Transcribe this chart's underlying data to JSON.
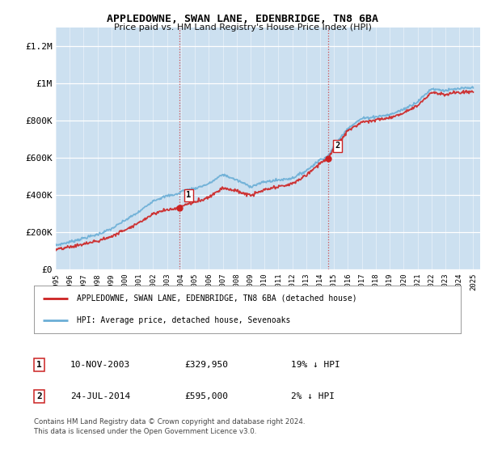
{
  "title": "APPLEDOWNE, SWAN LANE, EDENBRIDGE, TN8 6BA",
  "subtitle": "Price paid vs. HM Land Registry's House Price Index (HPI)",
  "ylabel_ticks": [
    "£0",
    "£200K",
    "£400K",
    "£600K",
    "£800K",
    "£1M",
    "£1.2M"
  ],
  "ytick_values": [
    0,
    200000,
    400000,
    600000,
    800000,
    1000000,
    1200000
  ],
  "ylim": [
    0,
    1300000
  ],
  "plot_bg_color": "#cce0f0",
  "sale1": {
    "date_num": 2003.86,
    "price": 329950,
    "label": "1",
    "date_str": "10-NOV-2003",
    "pct": "19% ↓ HPI"
  },
  "sale2": {
    "date_num": 2014.56,
    "price": 595000,
    "label": "2",
    "date_str": "24-JUL-2014",
    "pct": "2% ↓ HPI"
  },
  "legend_line1": "APPLEDOWNE, SWAN LANE, EDENBRIDGE, TN8 6BA (detached house)",
  "legend_line2": "HPI: Average price, detached house, Sevenoaks",
  "footer1": "Contains HM Land Registry data © Crown copyright and database right 2024.",
  "footer2": "This data is licensed under the Open Government Licence v3.0.",
  "hpi_color": "#6baed6",
  "price_color": "#cc2222",
  "vline_color": "#cc3333",
  "xmin": 1995,
  "xmax": 2025.5,
  "xticks": [
    1995,
    1996,
    1997,
    1998,
    1999,
    2000,
    2001,
    2002,
    2003,
    2004,
    2005,
    2006,
    2007,
    2008,
    2009,
    2010,
    2011,
    2012,
    2013,
    2014,
    2015,
    2016,
    2017,
    2018,
    2019,
    2020,
    2021,
    2022,
    2023,
    2024,
    2025
  ],
  "hpi_anchors_x": [
    1995.0,
    1996.0,
    1997.0,
    1998.0,
    1999.0,
    2000.0,
    2001.0,
    2002.0,
    2003.0,
    2003.86,
    2004.0,
    2005.0,
    2006.0,
    2007.0,
    2008.0,
    2009.0,
    2010.0,
    2011.0,
    2012.0,
    2013.0,
    2014.0,
    2014.56,
    2015.0,
    2016.0,
    2017.0,
    2018.0,
    2019.0,
    2020.0,
    2021.0,
    2022.0,
    2023.0,
    2024.0,
    2025.0
  ],
  "hpi_anchors_y": [
    130000,
    148000,
    168000,
    188000,
    218000,
    265000,
    310000,
    370000,
    395000,
    406000,
    420000,
    435000,
    460000,
    510000,
    480000,
    445000,
    470000,
    480000,
    490000,
    530000,
    590000,
    608000,
    660000,
    760000,
    810000,
    820000,
    830000,
    860000,
    900000,
    970000,
    960000,
    970000,
    975000
  ],
  "price_scale1": 0.812,
  "price_scale2": 0.979,
  "sale1_date": 2003.86,
  "sale2_date": 2014.56
}
